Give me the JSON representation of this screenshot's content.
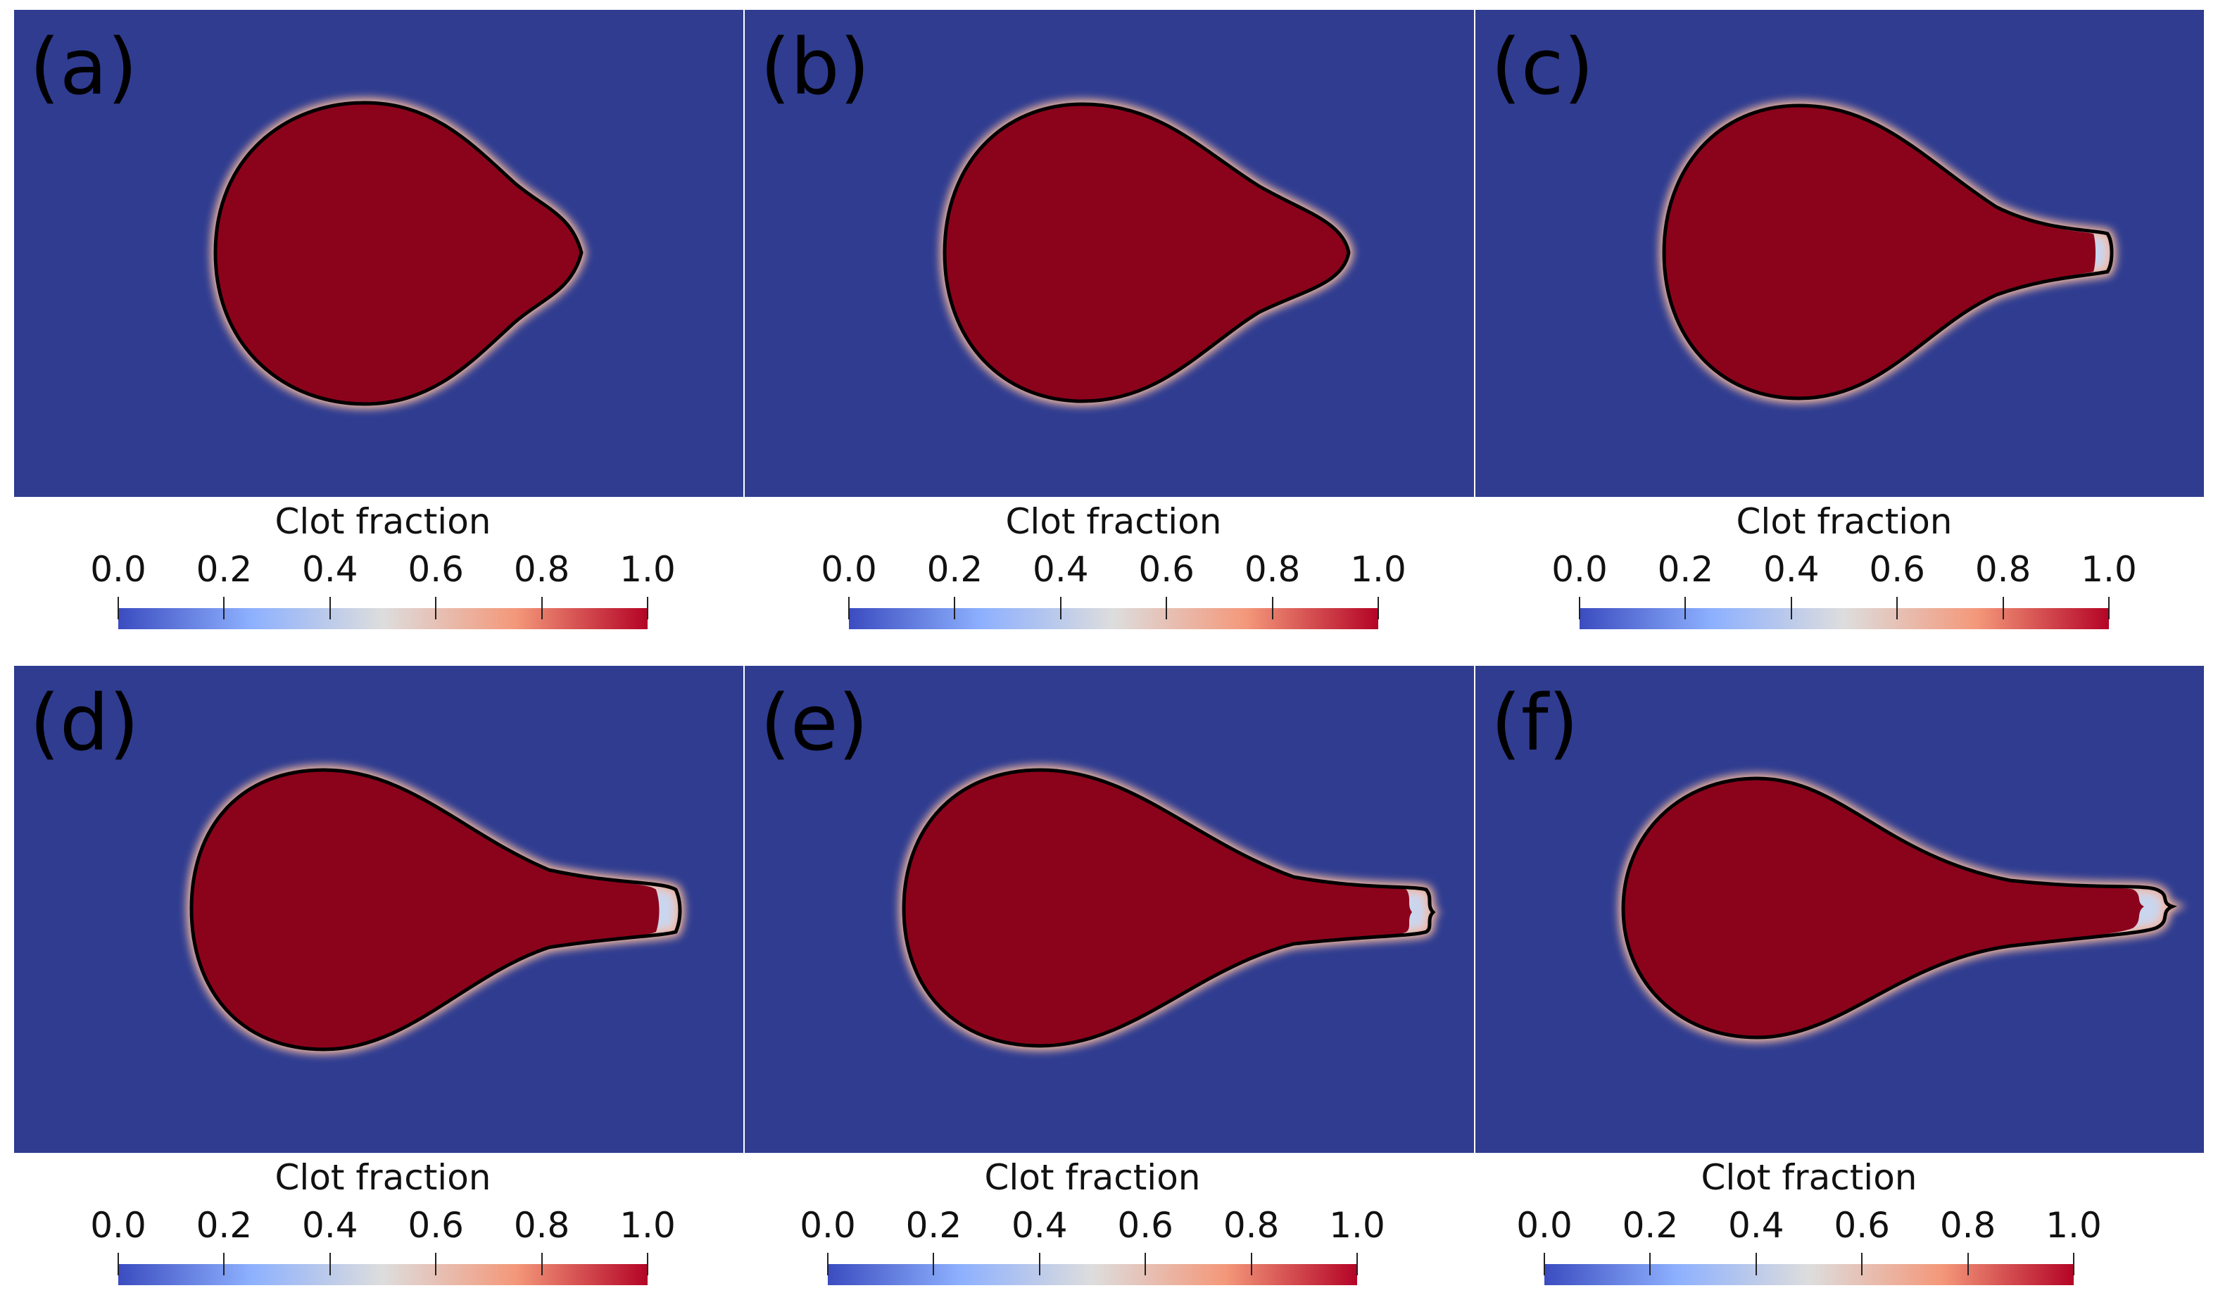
{
  "figure": {
    "colors": {
      "background": "#2f3c90",
      "clot": "#8b031b",
      "rim": "#f4a582",
      "contour": "#000000"
    },
    "panels": [
      {
        "label": "(a)"
      },
      {
        "label": "(b)"
      },
      {
        "label": "(c)"
      },
      {
        "label": "(d)"
      },
      {
        "label": "(e)"
      },
      {
        "label": "(f)"
      }
    ],
    "colorbar": {
      "title": "Clot fraction",
      "ticks": [
        "0.0",
        "0.2",
        "0.4",
        "0.6",
        "0.8",
        "1.0"
      ],
      "range": [
        0.0,
        1.0
      ],
      "colormap": "cool-to-warm"
    }
  }
}
